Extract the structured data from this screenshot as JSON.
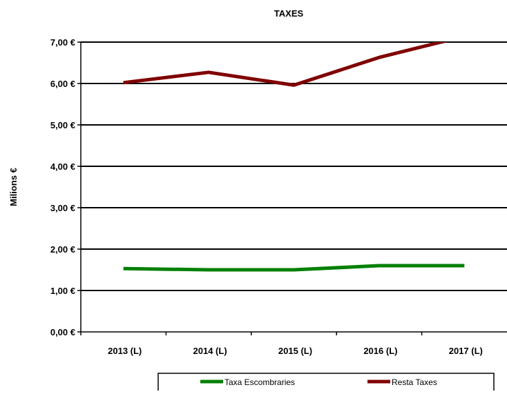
{
  "chart_data": {
    "type": "line",
    "title": "TAXES",
    "xlabel": "",
    "ylabel": "Milions €",
    "categories": [
      "2013 (L)",
      "2014 (L)",
      "2015 (L)",
      "2016 (L)",
      "2017 (L)"
    ],
    "ylim": [
      0,
      7
    ],
    "yticks": [
      0,
      1,
      2,
      3,
      4,
      5,
      6,
      7
    ],
    "ytick_labels": [
      "0,00 €",
      "1,00 €",
      "2,00 €",
      "3,00 €",
      "4,00 €",
      "5,00 €",
      "6,00 €",
      "7,00 €"
    ],
    "grid": true,
    "legend_position": "bottom",
    "series": [
      {
        "name": "Taxa Escombraries",
        "color": "#008000",
        "values": [
          1.53,
          1.5,
          1.5,
          1.6,
          1.6
        ]
      },
      {
        "name": "Resta Taxes",
        "color": "#800000",
        "values": [
          6.02,
          6.27,
          5.96,
          6.63,
          7.14
        ]
      }
    ]
  }
}
